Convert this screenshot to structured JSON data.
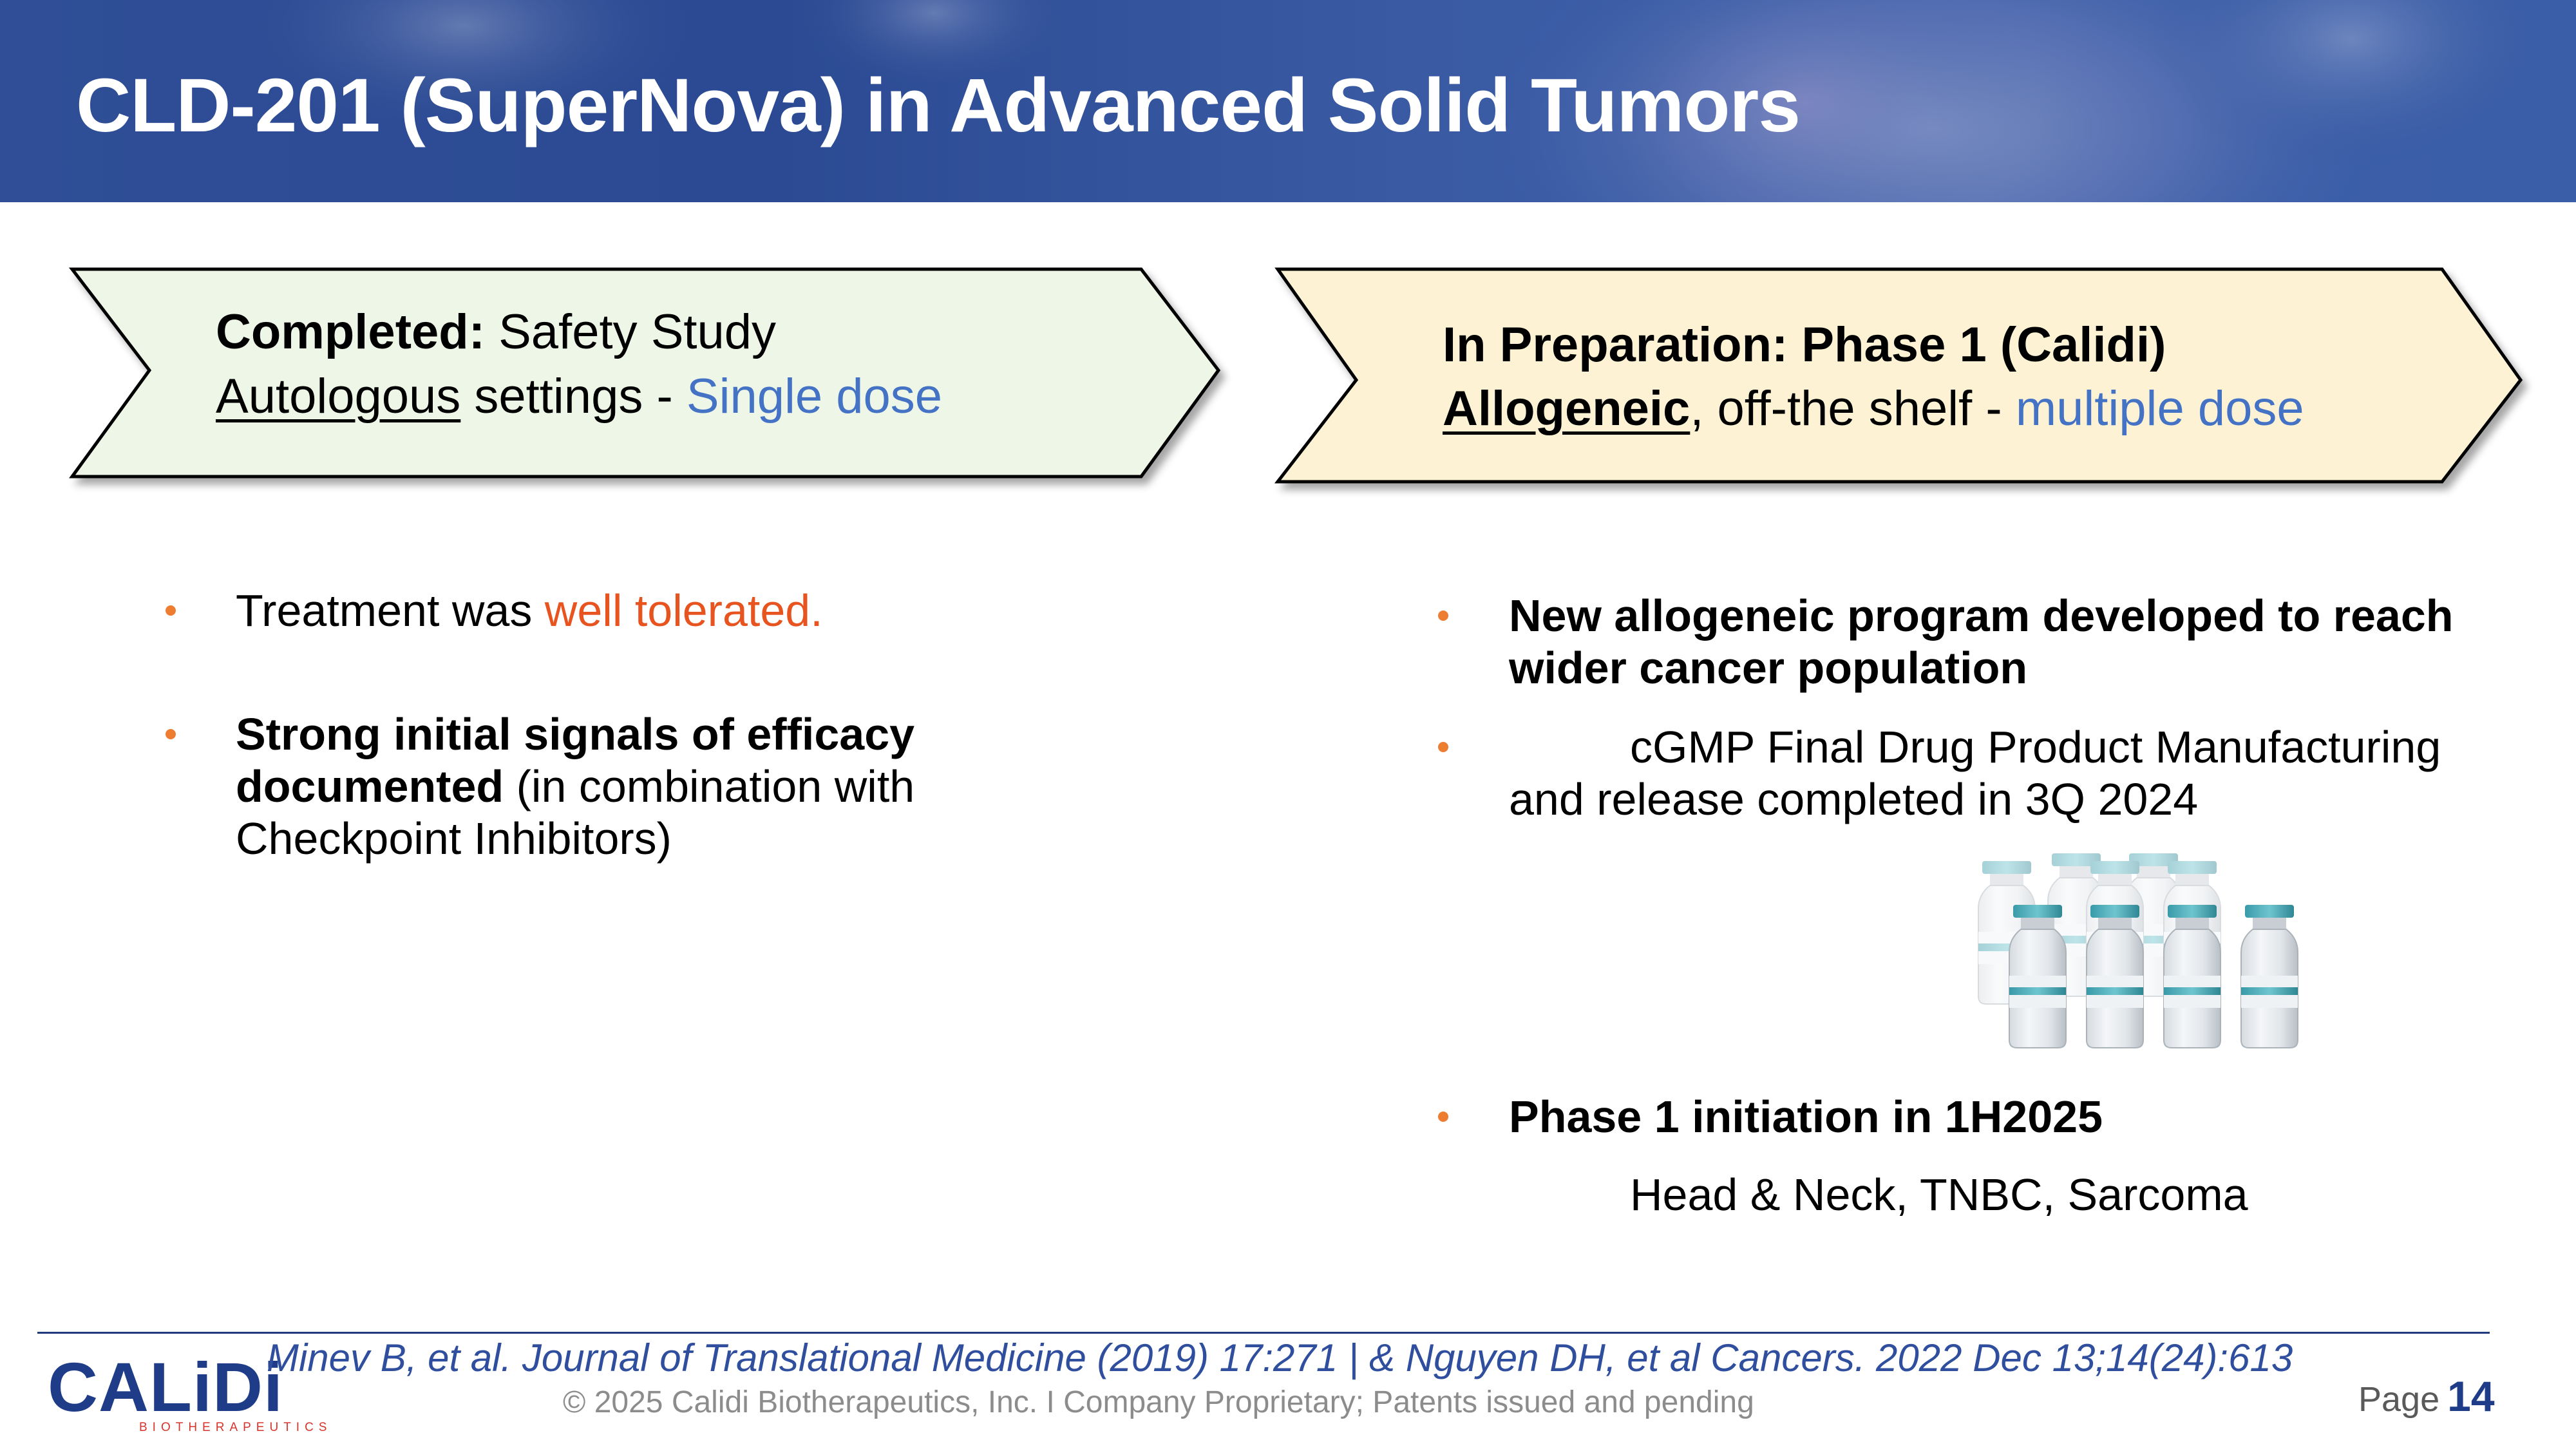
{
  "header": {
    "title": "CLD-201 (SuperNova) in Advanced Solid Tumors"
  },
  "left_box": {
    "line1_bold": "Completed:",
    "line1_rest": " Safety Study",
    "line2_underlined": "Autologous",
    "line2_mid": " settings - ",
    "line2_blue": "Single dose"
  },
  "right_box": {
    "line1_bold": "In Preparation:  Phase 1 (Calidi)",
    "line2_underlined": "Allogeneic",
    "line2_mid": ", off-the shelf - ",
    "line2_blue": "multiple dose"
  },
  "left_bullets": {
    "b1_text": "Treatment was ",
    "b1_highlight": "well tolerated.",
    "b2_bold_1": "Strong initial signals of efficacy",
    "b2_bold_2": "documented",
    "b2_rest_1": " (in combination with",
    "b2_rest_2": "Checkpoint Inhibitors)"
  },
  "right_bullets": {
    "b1_line1": "New allogeneic program developed to reach",
    "b1_line2": "wider cancer population",
    "b2_line1": "cGMP Final Drug Product Manufacturing",
    "b2_line2": "and release completed in 3Q 2024",
    "b3_line1": "Phase 1 initiation in 1H2025",
    "b3_line2": "Head & Neck, TNBC, Sarcoma"
  },
  "footer": {
    "citation": "Minev B, et al. Journal of Translational Medicine (2019) 17:271   |   & Nguyen DH, et al Cancers. 2022 Dec 13;14(24):613",
    "copyright": "© 2025 Calidi Biotherapeutics, Inc. I  Company Proprietary; Patents issued and pending",
    "page_label": "Page",
    "page_number": "14"
  },
  "logo": {
    "name": "CALiDi",
    "subtitle": "BIOTHERAPEUTICS"
  },
  "icons": {
    "vials": "vials-illustration-icon"
  },
  "colors": {
    "header_blue": "#2f4e97",
    "left_box_fill": "#eef6e7",
    "right_box_fill": "#fdf3d4",
    "bullet_orange": "#ed7d31",
    "highlight_orange": "#e8541f",
    "accent_blue": "#4472c4",
    "footer_blue": "#2f4f9e"
  }
}
